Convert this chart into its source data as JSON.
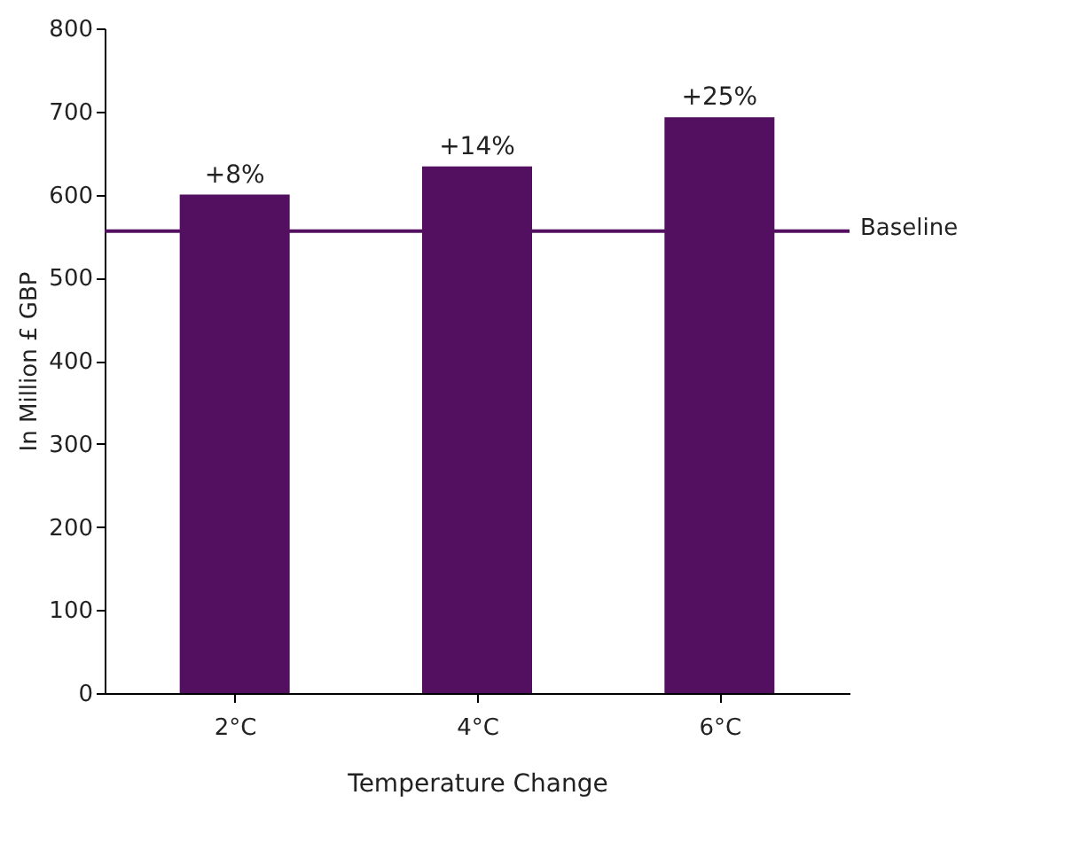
{
  "chart_data": {
    "type": "bar",
    "xlabel": "Temperature Change",
    "ylabel": "In Million £ GBP",
    "categories": [
      "2°C",
      "4°C",
      "6°C"
    ],
    "series": [
      {
        "color": "#541060",
        "values": [
          600,
          634,
          693
        ]
      }
    ],
    "annotations": [
      {
        "text": "+8%",
        "x": "2°C",
        "y": 600
      },
      {
        "text": "+14%",
        "x": "4°C",
        "y": 634
      },
      {
        "text": "+25%",
        "x": "6°C",
        "y": 693
      }
    ],
    "ylim": [
      0,
      800
    ],
    "yticks": [
      0,
      100,
      200,
      300,
      400,
      500,
      600,
      700,
      800
    ],
    "grid": false,
    "ref_lines": [
      {
        "axis": "y",
        "value": 556,
        "label": "Baseline",
        "color": "#541060",
        "line_style": "solid"
      }
    ]
  }
}
